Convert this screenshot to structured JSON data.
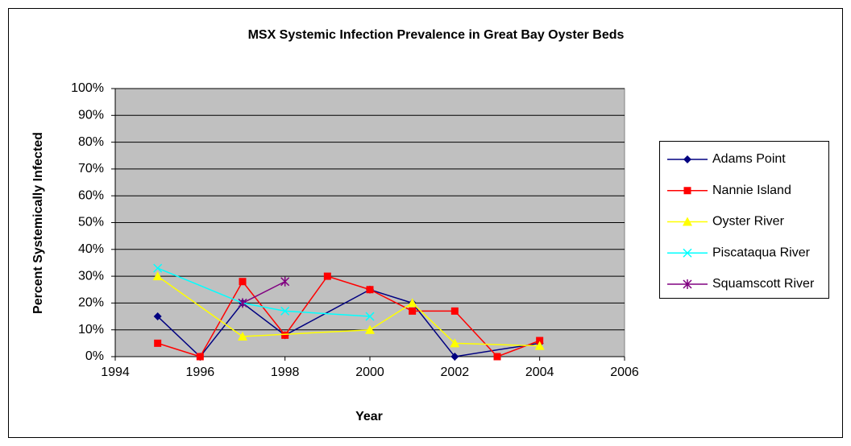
{
  "chart_data": {
    "type": "line",
    "title": "MSX Systemic Infection Prevalence in Great Bay Oyster Beds",
    "xlabel": "Year",
    "ylabel": "Percent Systemically Infected",
    "xlim": [
      1994,
      2006
    ],
    "xticks": [
      1994,
      1996,
      1998,
      2000,
      2002,
      2004,
      2006
    ],
    "ylim": [
      0,
      100
    ],
    "yticks": [
      {
        "value": 0,
        "label": "0%"
      },
      {
        "value": 10,
        "label": "10%"
      },
      {
        "value": 20,
        "label": "20%"
      },
      {
        "value": 30,
        "label": "30%"
      },
      {
        "value": 40,
        "label": "40%"
      },
      {
        "value": 50,
        "label": "50%"
      },
      {
        "value": 60,
        "label": "60%"
      },
      {
        "value": 70,
        "label": "70%"
      },
      {
        "value": 80,
        "label": "80%"
      },
      {
        "value": 90,
        "label": "90%"
      },
      {
        "value": 100,
        "label": "100%"
      }
    ],
    "grid": true,
    "legend": "right",
    "series": [
      {
        "name": "Adams Point",
        "color": "#000080",
        "marker": "diamond",
        "x": [
          1995,
          1996,
          1997,
          1998,
          2000,
          2001,
          2002,
          2004
        ],
        "values": [
          15,
          0,
          20,
          8,
          25,
          20,
          0,
          5
        ]
      },
      {
        "name": "Nannie Island",
        "color": "#FF0000",
        "marker": "square",
        "x": [
          1995,
          1996,
          1997,
          1998,
          1999,
          2000,
          2001,
          2002,
          2003,
          2004
        ],
        "values": [
          5,
          0,
          28,
          8,
          30,
          25,
          17,
          17,
          0,
          6
        ]
      },
      {
        "name": "Oyster River",
        "color": "#FFFF00",
        "marker": "triangle",
        "x": [
          1995,
          1997,
          2000,
          2001,
          2002,
          2004
        ],
        "values": [
          30,
          7.5,
          10,
          20,
          5,
          4
        ]
      },
      {
        "name": "Piscataqua River",
        "color": "#00FFFF",
        "marker": "x",
        "x": [
          1995,
          1997,
          1998,
          2000
        ],
        "values": [
          33,
          20,
          17,
          15
        ]
      },
      {
        "name": "Squamscott River",
        "color": "#800080",
        "marker": "star",
        "x": [
          1997,
          1998
        ],
        "values": [
          20,
          28
        ]
      }
    ]
  }
}
